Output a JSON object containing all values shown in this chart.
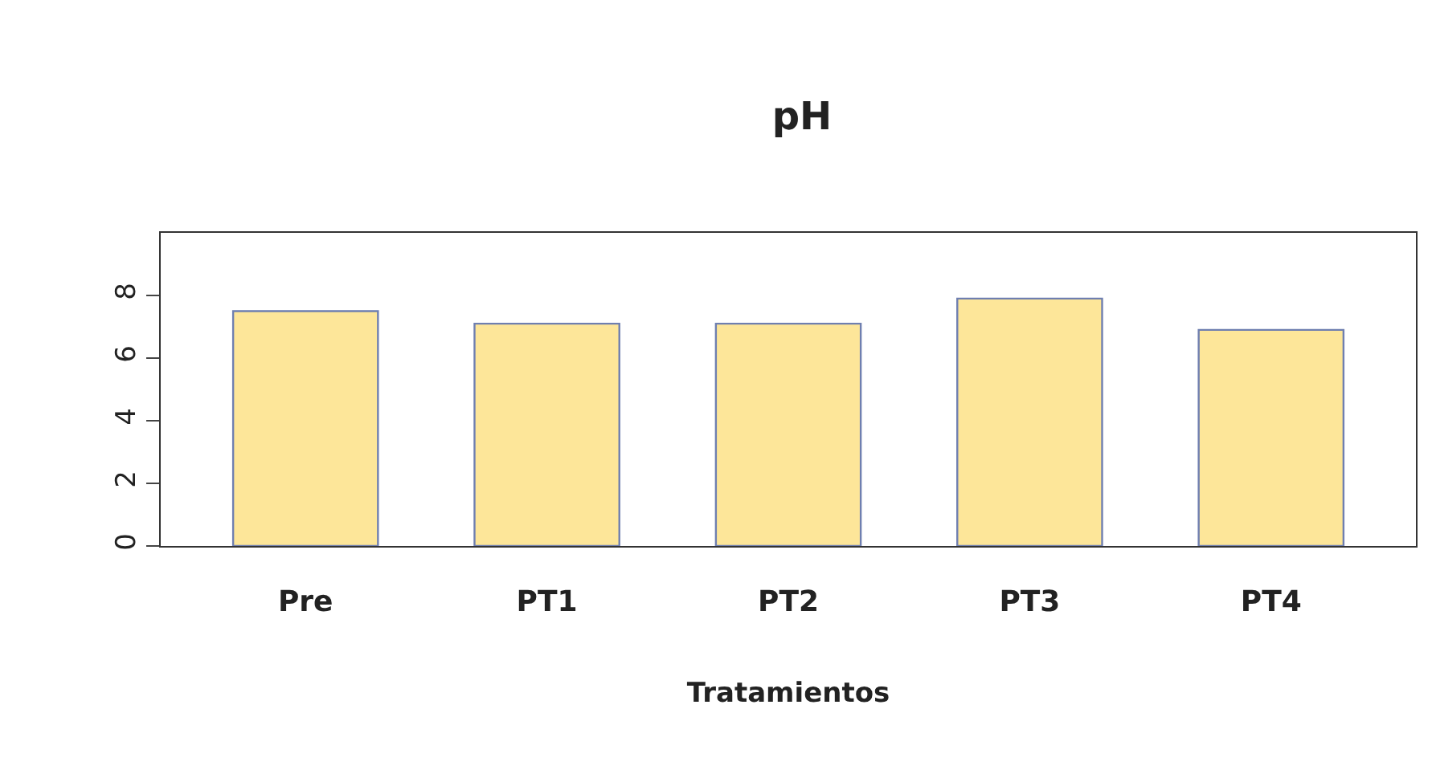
{
  "chart_data": {
    "type": "bar",
    "title": "pH",
    "xlabel": "Tratamientos",
    "categories": [
      "Pre",
      "PT1",
      "PT2",
      "PT3",
      "PT4"
    ],
    "values": [
      7.5,
      7.1,
      7.1,
      7.9,
      6.9
    ],
    "color": "#fde699",
    "ylim": [
      0,
      10
    ],
    "yticks": [
      0,
      2,
      4,
      6,
      8
    ]
  }
}
